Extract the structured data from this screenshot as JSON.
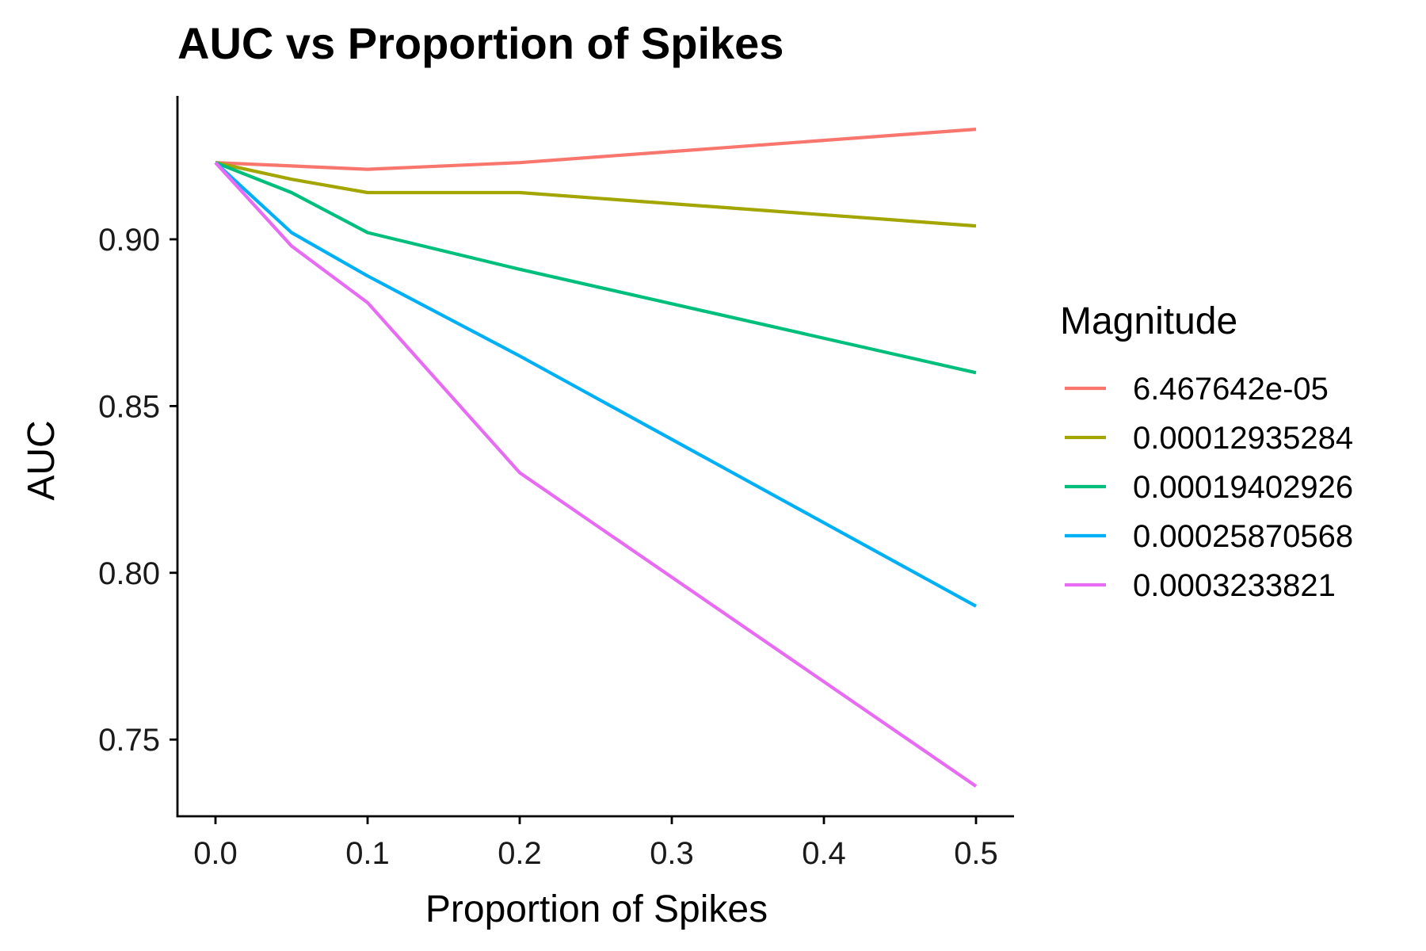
{
  "chart_data": {
    "type": "line",
    "title": "AUC vs Proportion of Spikes",
    "xlabel": "Proportion of Spikes",
    "ylabel": "AUC",
    "xlim": [
      -0.025,
      0.525
    ],
    "ylim": [
      0.727,
      0.943
    ],
    "x_ticks": [
      0.0,
      0.1,
      0.2,
      0.3,
      0.4,
      0.5
    ],
    "x_tick_labels": [
      "0.0",
      "0.1",
      "0.2",
      "0.3",
      "0.4",
      "0.5"
    ],
    "y_ticks": [
      0.75,
      0.8,
      0.85,
      0.9
    ],
    "y_tick_labels": [
      "0.75",
      "0.80",
      "0.85",
      "0.90"
    ],
    "grid": false,
    "legend": {
      "title": "Magnitude",
      "placement": "right"
    },
    "x": [
      0.0,
      0.05,
      0.1,
      0.2,
      0.5
    ],
    "series": [
      {
        "name": "6.467642e-05",
        "color": "#F8766D",
        "values": [
          0.923,
          0.922,
          0.921,
          0.923,
          0.933
        ]
      },
      {
        "name": "0.00012935284",
        "color": "#A3A500",
        "values": [
          0.923,
          0.918,
          0.914,
          0.914,
          0.904
        ]
      },
      {
        "name": "0.00019402926",
        "color": "#00BF7D",
        "values": [
          0.923,
          0.914,
          0.902,
          0.891,
          0.86
        ]
      },
      {
        "name": "0.00025870568",
        "color": "#00B0F6",
        "values": [
          0.923,
          0.902,
          0.889,
          0.865,
          0.79
        ]
      },
      {
        "name": "0.0003233821",
        "color": "#E76BF3",
        "values": [
          0.923,
          0.898,
          0.881,
          0.83,
          0.736
        ]
      }
    ]
  }
}
